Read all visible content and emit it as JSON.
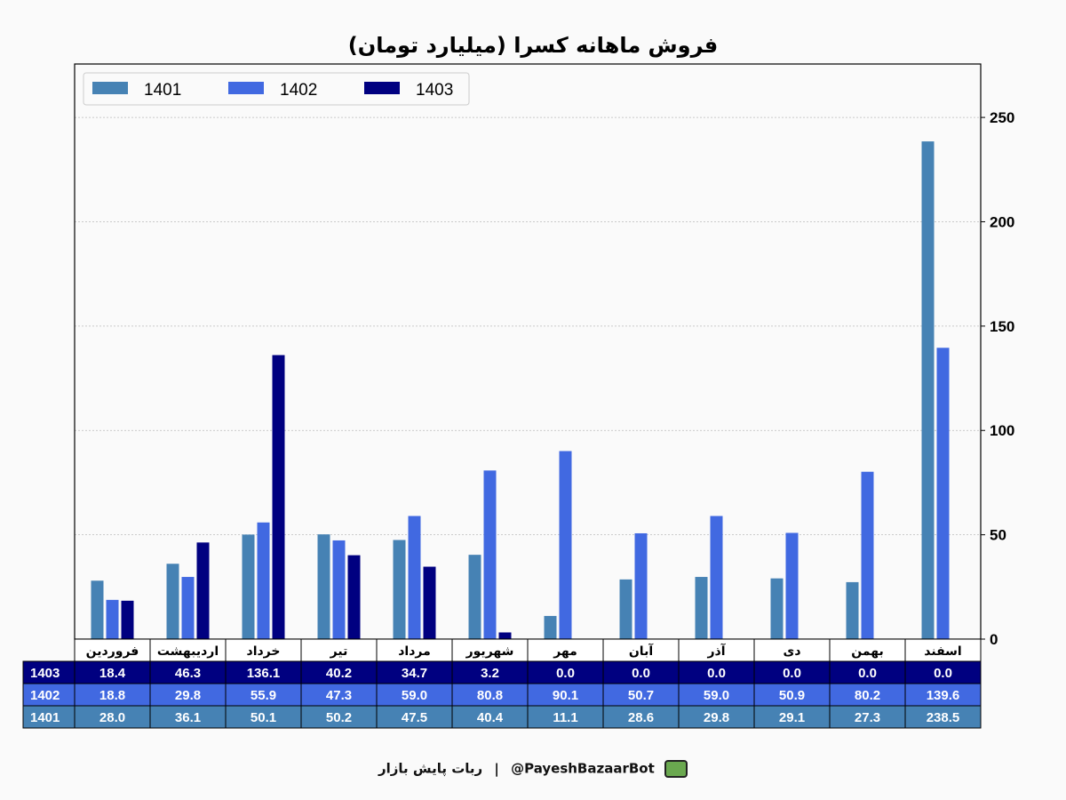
{
  "chart_data": {
    "type": "bar",
    "title": "فروش ماهانه کسرا (میلیارد تومان)",
    "xlabel": "",
    "ylabel": "",
    "ylim": [
      0,
      275.6
    ],
    "yticks": [
      0,
      50,
      100,
      150,
      200,
      250
    ],
    "grid": true,
    "legend_position": "top-left",
    "categories": [
      "فروردین",
      "اردیبهشت",
      "خرداد",
      "تیر",
      "مرداد",
      "شهریور",
      "مهر",
      "آبان",
      "آذر",
      "دی",
      "بهمن",
      "اسفند"
    ],
    "series": [
      {
        "name": "1401",
        "color": "#4682B4",
        "values": [
          28.0,
          36.1,
          50.1,
          50.2,
          47.5,
          40.4,
          11.1,
          28.6,
          29.8,
          29.1,
          27.3,
          238.5
        ]
      },
      {
        "name": "1402",
        "color": "#4169E1",
        "values": [
          18.8,
          29.8,
          55.9,
          47.3,
          59.0,
          80.8,
          90.1,
          50.7,
          59.0,
          50.9,
          80.2,
          139.6
        ]
      },
      {
        "name": "1403",
        "color": "#000080",
        "values": [
          18.4,
          46.3,
          136.1,
          40.2,
          34.7,
          3.2,
          0.0,
          0.0,
          0.0,
          0.0,
          0.0,
          0.0
        ]
      }
    ],
    "table_row_order": [
      "1403",
      "1402",
      "1401"
    ]
  },
  "footer": {
    "text": "ربات پایش بازار",
    "separator": "|",
    "handle": "@PayeshBazaarBot",
    "icon": "monitor-icon"
  }
}
